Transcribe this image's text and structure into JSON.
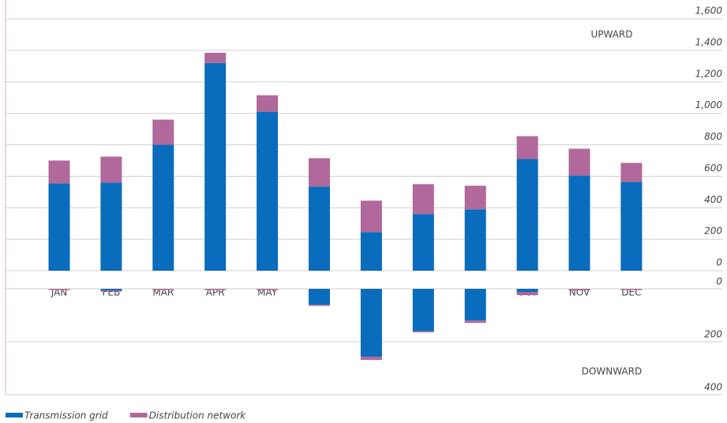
{
  "chart_data": [
    {
      "type": "bar",
      "stacked": true,
      "label": "UPWARD",
      "categories": [
        "JAN",
        "FEB",
        "MAR",
        "APR",
        "MAY",
        "JUN",
        "JUL",
        "AUG",
        "SEP",
        "OCT",
        "NOV",
        "DEC"
      ],
      "series": [
        {
          "name": "Transmission grid",
          "color": "#0a6cbc",
          "values": [
            555,
            560,
            800,
            1320,
            1010,
            535,
            245,
            360,
            390,
            710,
            605,
            565
          ]
        },
        {
          "name": "Distribution network",
          "color": "#b0699a",
          "values": [
            145,
            165,
            160,
            65,
            105,
            180,
            200,
            190,
            150,
            145,
            170,
            120
          ]
        }
      ],
      "ylim": [
        0,
        1600
      ],
      "yticks": [
        0,
        200,
        400,
        600,
        800,
        {
          "value": 1000,
          "label": "1,000"
        },
        {
          "value": 1200,
          "label": "1,200"
        },
        {
          "value": 1400,
          "label": "1,400"
        },
        {
          "value": 1600,
          "label": "1,600"
        }
      ],
      "grid": true
    },
    {
      "type": "bar",
      "stacked": true,
      "inverted": true,
      "label": "DOWNWARD",
      "series": [
        {
          "color": "#0a6cbc",
          "values": [
            0,
            6,
            0,
            0,
            0,
            60,
            257,
            160,
            120,
            12,
            0,
            0
          ]
        },
        {
          "color": "#b0699a",
          "values": [
            4,
            2,
            4,
            4,
            4,
            2,
            12,
            3,
            9,
            12,
            6,
            4
          ]
        }
      ],
      "ylim": [
        0,
        400
      ],
      "yticks": [
        0,
        200,
        400
      ],
      "grid": true
    }
  ]
}
